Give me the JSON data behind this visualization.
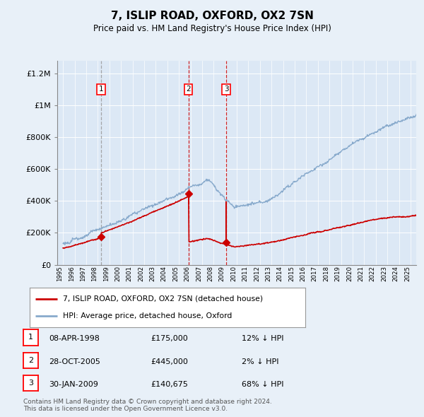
{
  "title": "7, ISLIP ROAD, OXFORD, OX2 7SN",
  "subtitle": "Price paid vs. HM Land Registry's House Price Index (HPI)",
  "background_color": "#e8f0f8",
  "plot_bg_color": "#dce8f5",
  "transactions": [
    {
      "price": 175000,
      "x": 1998.27,
      "label": "1",
      "vline_color": "#aaaaaa",
      "vline_style": "--"
    },
    {
      "price": 445000,
      "x": 2005.82,
      "label": "2",
      "vline_color": "#cc0000",
      "vline_style": "--"
    },
    {
      "price": 140675,
      "x": 2009.08,
      "label": "3",
      "vline_color": "#cc0000",
      "vline_style": "--"
    }
  ],
  "legend_entries": [
    {
      "label": "7, ISLIP ROAD, OXFORD, OX2 7SN (detached house)",
      "color": "#cc0000"
    },
    {
      "label": "HPI: Average price, detached house, Oxford",
      "color": "#88aacc"
    }
  ],
  "table_rows": [
    {
      "num": "1",
      "date": "08-APR-1998",
      "price": "£175,000",
      "pct": "12% ↓ HPI"
    },
    {
      "num": "2",
      "date": "28-OCT-2005",
      "price": "£445,000",
      "pct": "2% ↓ HPI"
    },
    {
      "num": "3",
      "date": "30-JAN-2009",
      "price": "£140,675",
      "pct": "68% ↓ HPI"
    }
  ],
  "footer": "Contains HM Land Registry data © Crown copyright and database right 2024.\nThis data is licensed under the Open Government Licence v3.0.",
  "yticks": [
    0,
    200000,
    400000,
    600000,
    800000,
    1000000,
    1200000
  ],
  "ytick_labels": [
    "£0",
    "£200K",
    "£400K",
    "£600K",
    "£800K",
    "£1M",
    "£1.2M"
  ],
  "xmin": 1994.5,
  "xmax": 2025.5,
  "ymax": 1280000
}
